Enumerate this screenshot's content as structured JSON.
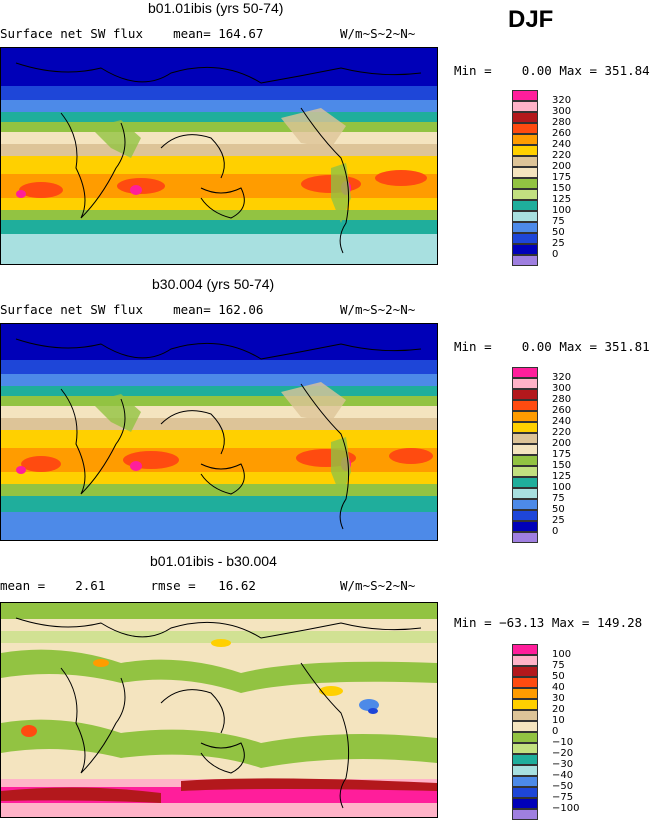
{
  "season": "DJF",
  "panels": [
    {
      "title": "b01.01ibis (yrs 50-74)",
      "left_text": "Surface net SW flux    mean= 164.67",
      "units": "W/m~S~2~N~",
      "minmax": "Min =    0.00 Max = 351.84",
      "legend_labels": [
        "320",
        "300",
        "280",
        "260",
        "240",
        "220",
        "200",
        "175",
        "150",
        "125",
        "100",
        "75",
        "50",
        "25",
        "0"
      ],
      "legend_colors": [
        "#ff1e9b",
        "#ffb3c8",
        "#b3181c",
        "#ff4b10",
        "#ff9c00",
        "#ffd000",
        "#ddc498",
        "#f4e4bf",
        "#92c342",
        "#c2e080",
        "#1fae9c",
        "#a8e0e0",
        "#4d8ae8",
        "#1e46d8",
        "#0000b8",
        "#9f7fe0"
      ]
    },
    {
      "title": "b30.004 (yrs 50-74)",
      "left_text": "Surface net SW flux    mean= 162.06",
      "units": "W/m~S~2~N~",
      "minmax": "Min =    0.00 Max = 351.81",
      "legend_labels": [
        "320",
        "300",
        "280",
        "260",
        "240",
        "220",
        "200",
        "175",
        "150",
        "125",
        "100",
        "75",
        "50",
        "25",
        "0"
      ],
      "legend_colors": [
        "#ff1e9b",
        "#ffb3c8",
        "#b3181c",
        "#ff4b10",
        "#ff9c00",
        "#ffd000",
        "#ddc498",
        "#f4e4bf",
        "#92c342",
        "#c2e080",
        "#1fae9c",
        "#a8e0e0",
        "#4d8ae8",
        "#1e46d8",
        "#0000b8",
        "#9f7fe0"
      ]
    },
    {
      "title": "b01.01ibis - b30.004",
      "left_text": "mean =    2.61      rmse =   16.62",
      "units": "W/m~S~2~N~",
      "minmax": "Min = −63.13 Max = 149.28",
      "legend_labels": [
        "100",
        "75",
        "50",
        "40",
        "30",
        "20",
        "10",
        "0",
        "−10",
        "−20",
        "−30",
        "−40",
        "−50",
        "−75",
        "−100"
      ],
      "legend_colors": [
        "#ff1e9b",
        "#ffb3c8",
        "#b3181c",
        "#ff4b10",
        "#ff9c00",
        "#ffd000",
        "#ddc498",
        "#f4e4bf",
        "#92c342",
        "#c2e080",
        "#1fae9c",
        "#a8e0e0",
        "#4d8ae8",
        "#1e46d8",
        "#0000b8",
        "#9f7fe0"
      ]
    }
  ]
}
